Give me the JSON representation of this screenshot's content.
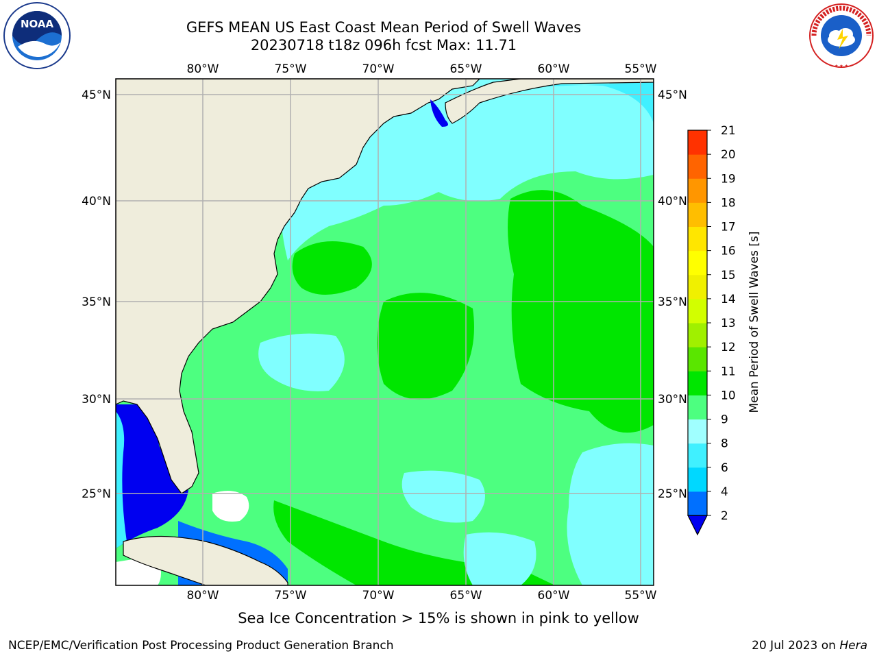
{
  "title_line1": "GEFS MEAN US East Coast Mean Period of Swell Waves",
  "title_line2": "20230718 t18z 096h fcst   Max: 11.71",
  "map": {
    "lon_ticks": [
      "80°W",
      "75°W",
      "70°W",
      "65°W",
      "60°W",
      "55°W"
    ],
    "lat_ticks": [
      "45°N",
      "40°N",
      "35°N",
      "30°N",
      "25°N"
    ],
    "colors": {
      "land": "#efeddc",
      "ocean_green": "#4dff80",
      "ocean_bright": "#00e600",
      "ocean_cyan": "#80ffff",
      "ocean_light": "#40f0ff",
      "deep_blue": "#0000f0",
      "grid": "#b0b0b0"
    }
  },
  "colorbar": {
    "label": "Mean Period of Swell Waves [s]",
    "ticks": [
      "2",
      "4",
      "6",
      "8",
      "9",
      "10",
      "11",
      "12",
      "13",
      "14",
      "15",
      "16",
      "17",
      "18",
      "19",
      "20",
      "21"
    ],
    "colors": [
      "#0070ff",
      "#00d8ff",
      "#40f0ff",
      "#a0ffff",
      "#4dff80",
      "#00e600",
      "#5ae600",
      "#a0f000",
      "#d2ff00",
      "#f0f000",
      "#ffff00",
      "#ffe600",
      "#ffbe00",
      "#ff9600",
      "#ff6400",
      "#ff3200"
    ],
    "under_color": "#0000f0"
  },
  "footer": {
    "note": "Sea Ice Concentration > 15% is shown in pink to yellow",
    "credit": "NCEP/EMC/Verification Post Processing Product Generation Branch",
    "date": "20 Jul 2023 on",
    "host": "Hera"
  },
  "logos": {
    "noaa_text": "NOAA",
    "nws_text": "NATIONAL WEATHER SERVICE"
  }
}
